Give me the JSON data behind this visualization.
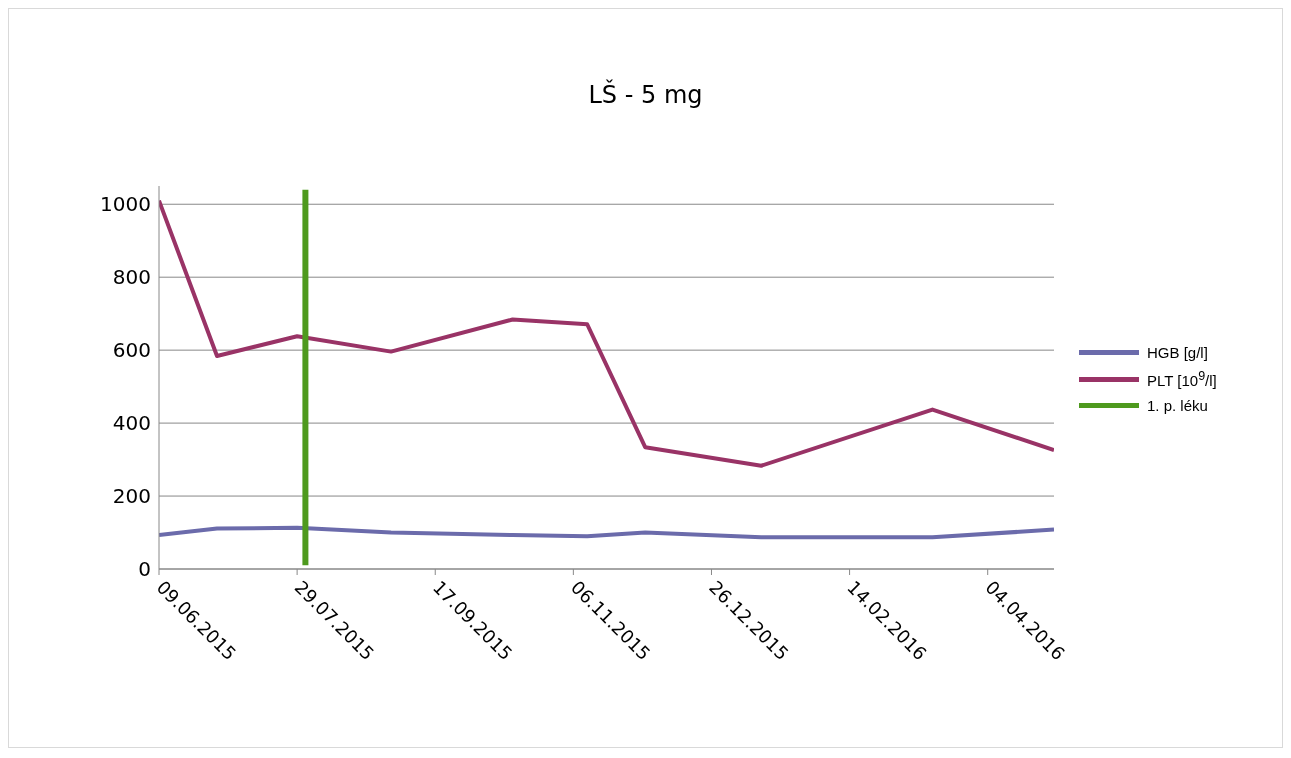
{
  "chart_data": {
    "type": "line",
    "title": "LŠ - 5 mg",
    "x": [
      "2015-06-09",
      "2015-06-30",
      "2015-07-29",
      "2015-09-01",
      "2015-10-15",
      "2015-11-11",
      "2015-12-02",
      "2016-01-13",
      "2016-03-15",
      "2016-04-28"
    ],
    "series": [
      {
        "name": "HGB [g/l]",
        "color": "#6b6bab",
        "values": [
          93,
          111,
          113,
          100,
          93,
          90,
          100,
          87,
          87,
          108
        ]
      },
      {
        "name": "PLT [10$^{9}$/l]",
        "color": "#993366",
        "values": [
          1010,
          584,
          638,
          596,
          684,
          671,
          334,
          283,
          437,
          326
        ]
      },
      {
        "name": "1. p. léku",
        "color": "#4e9a1e",
        "x": [
          "2015-08-01",
          "2015-08-01"
        ],
        "values": [
          10,
          1040
        ]
      }
    ],
    "xlim": [
      "2015-06-09",
      "2016-04-28"
    ],
    "xticks": [
      {
        "value": "2015-06-09",
        "label": "09.06.2015"
      },
      {
        "value": "2015-07-29",
        "label": "29.07.2015"
      },
      {
        "value": "2015-09-17",
        "label": "17.09.2015"
      },
      {
        "value": "2015-11-06",
        "label": "06.11.2015"
      },
      {
        "value": "2015-12-26",
        "label": "26.12.2015"
      },
      {
        "value": "2016-02-14",
        "label": "14.02.2016"
      },
      {
        "value": "2016-04-04",
        "label": "04.04.2016"
      }
    ],
    "ylim": [
      0,
      1050
    ],
    "yticks": [
      0,
      200,
      400,
      600,
      800,
      1000
    ],
    "grid": "y",
    "legend": "right",
    "marker": "none",
    "line_style": "solid"
  }
}
